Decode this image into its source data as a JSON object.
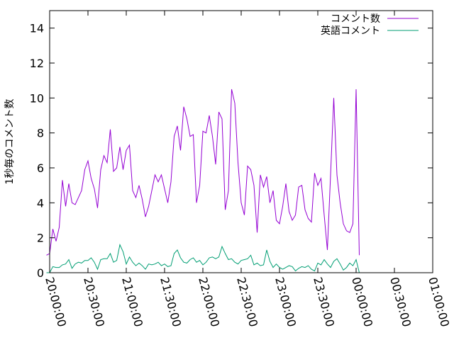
{
  "chart_data": {
    "type": "line",
    "title": "",
    "xlabel": "",
    "ylabel": "1秒毎のコメント数",
    "ylim": [
      0,
      15
    ],
    "yticks": [
      0,
      2,
      4,
      6,
      8,
      10,
      12,
      14
    ],
    "xlim": [
      "20:00:00",
      "25:00:00"
    ],
    "xtick_labels": [
      "20:00:00",
      "20:30:00",
      "21:00:00",
      "21:30:00",
      "22:00:00",
      "22:30:00",
      "23:00:00",
      "23:30:00",
      "00:00:00",
      "00:30:00",
      "01:00:00"
    ],
    "xtick_positions": [
      "20:00:00",
      "20:30:00",
      "21:00:00",
      "21:30:00",
      "22:00:00",
      "22:30:00",
      "23:00:00",
      "23:30:00",
      "24:00:00",
      "24:30:00",
      "25:00:00"
    ],
    "legend_position": "top-right",
    "grid": false,
    "series": [
      {
        "name": "コメント数",
        "color": "#9400d3",
        "points": [
          [
            "19:57:30",
            1.0
          ],
          [
            "20:00:00",
            1.1
          ],
          [
            "20:02:30",
            2.5
          ],
          [
            "20:05:00",
            1.8
          ],
          [
            "20:07:30",
            2.6
          ],
          [
            "20:10:00",
            5.3
          ],
          [
            "20:12:30",
            3.8
          ],
          [
            "20:15:00",
            5.1
          ],
          [
            "20:17:30",
            4.0
          ],
          [
            "20:20:00",
            3.9
          ],
          [
            "20:22:30",
            4.3
          ],
          [
            "20:25:00",
            4.7
          ],
          [
            "20:27:30",
            5.9
          ],
          [
            "20:30:00",
            6.4
          ],
          [
            "20:32:30",
            5.4
          ],
          [
            "20:35:00",
            4.8
          ],
          [
            "20:37:30",
            3.7
          ],
          [
            "20:40:00",
            5.9
          ],
          [
            "20:42:30",
            6.7
          ],
          [
            "20:45:00",
            6.3
          ],
          [
            "20:47:30",
            8.2
          ],
          [
            "20:50:00",
            5.8
          ],
          [
            "20:52:30",
            6.0
          ],
          [
            "20:55:00",
            7.2
          ],
          [
            "20:57:30",
            5.9
          ],
          [
            "21:00:00",
            7.0
          ],
          [
            "21:02:30",
            7.3
          ],
          [
            "21:05:00",
            4.7
          ],
          [
            "21:07:30",
            4.3
          ],
          [
            "21:10:00",
            5.0
          ],
          [
            "21:12:30",
            4.2
          ],
          [
            "21:15:00",
            3.2
          ],
          [
            "21:17:30",
            3.8
          ],
          [
            "21:20:00",
            4.7
          ],
          [
            "21:22:30",
            5.6
          ],
          [
            "21:25:00",
            5.2
          ],
          [
            "21:27:30",
            5.6
          ],
          [
            "21:30:00",
            4.8
          ],
          [
            "21:32:30",
            4.0
          ],
          [
            "21:35:00",
            5.2
          ],
          [
            "21:37:30",
            7.8
          ],
          [
            "21:40:00",
            8.4
          ],
          [
            "21:42:30",
            7.0
          ],
          [
            "21:45:00",
            9.5
          ],
          [
            "21:47:30",
            8.8
          ],
          [
            "21:50:00",
            7.8
          ],
          [
            "21:52:30",
            7.9
          ],
          [
            "21:55:00",
            4.0
          ],
          [
            "21:57:30",
            5.0
          ],
          [
            "22:00:00",
            8.1
          ],
          [
            "22:02:30",
            8.0
          ],
          [
            "22:05:00",
            9.0
          ],
          [
            "22:07:30",
            7.8
          ],
          [
            "22:10:00",
            6.2
          ],
          [
            "22:12:30",
            9.2
          ],
          [
            "22:15:00",
            8.8
          ],
          [
            "22:17:30",
            3.6
          ],
          [
            "22:20:00",
            4.7
          ],
          [
            "22:22:30",
            10.5
          ],
          [
            "22:25:00",
            9.7
          ],
          [
            "22:27:30",
            6.3
          ],
          [
            "22:30:00",
            4.0
          ],
          [
            "22:32:30",
            3.3
          ],
          [
            "22:35:00",
            6.1
          ],
          [
            "22:37:30",
            5.9
          ],
          [
            "22:40:00",
            5.0
          ],
          [
            "22:42:30",
            2.3
          ],
          [
            "22:45:00",
            5.6
          ],
          [
            "22:47:30",
            4.9
          ],
          [
            "22:50:00",
            5.5
          ],
          [
            "22:52:30",
            4.0
          ],
          [
            "22:55:00",
            4.7
          ],
          [
            "22:57:30",
            3.0
          ],
          [
            "23:00:00",
            2.8
          ],
          [
            "23:02:30",
            3.8
          ],
          [
            "23:05:00",
            5.1
          ],
          [
            "23:07:30",
            3.5
          ],
          [
            "23:10:00",
            3.0
          ],
          [
            "23:12:30",
            3.3
          ],
          [
            "23:15:00",
            4.9
          ],
          [
            "23:17:30",
            5.0
          ],
          [
            "23:20:00",
            3.6
          ],
          [
            "23:22:30",
            3.1
          ],
          [
            "23:25:00",
            2.9
          ],
          [
            "23:27:30",
            5.7
          ],
          [
            "23:30:00",
            5.0
          ],
          [
            "23:32:30",
            5.4
          ],
          [
            "23:35:00",
            3.3
          ],
          [
            "23:37:30",
            1.3
          ],
          [
            "23:40:00",
            5.6
          ],
          [
            "23:42:30",
            10.0
          ],
          [
            "23:45:00",
            5.6
          ],
          [
            "23:47:30",
            4.0
          ],
          [
            "23:50:00",
            2.8
          ],
          [
            "23:52:30",
            2.4
          ],
          [
            "23:55:00",
            2.3
          ],
          [
            "23:57:30",
            2.8
          ],
          [
            "24:00:00",
            10.5
          ],
          [
            "24:02:30",
            1.0
          ]
        ]
      },
      {
        "name": "英語コメント",
        "color": "#009e73",
        "points": [
          [
            "19:57:30",
            0.0
          ],
          [
            "20:00:00",
            0.0
          ],
          [
            "20:02:30",
            0.35
          ],
          [
            "20:05:00",
            0.3
          ],
          [
            "20:07:30",
            0.3
          ],
          [
            "20:10:00",
            0.45
          ],
          [
            "20:12:30",
            0.5
          ],
          [
            "20:15:00",
            0.75
          ],
          [
            "20:17:30",
            0.25
          ],
          [
            "20:20:00",
            0.5
          ],
          [
            "20:22:30",
            0.6
          ],
          [
            "20:25:00",
            0.55
          ],
          [
            "20:27:30",
            0.7
          ],
          [
            "20:30:00",
            0.7
          ],
          [
            "20:32:30",
            0.85
          ],
          [
            "20:35:00",
            0.6
          ],
          [
            "20:37:30",
            0.2
          ],
          [
            "20:40:00",
            0.75
          ],
          [
            "20:42:30",
            0.8
          ],
          [
            "20:45:00",
            0.8
          ],
          [
            "20:47:30",
            1.1
          ],
          [
            "20:50:00",
            0.6
          ],
          [
            "20:52:30",
            0.7
          ],
          [
            "20:55:00",
            1.6
          ],
          [
            "20:57:30",
            1.2
          ],
          [
            "21:00:00",
            0.5
          ],
          [
            "21:02:30",
            0.9
          ],
          [
            "21:05:00",
            0.6
          ],
          [
            "21:07:30",
            0.4
          ],
          [
            "21:10:00",
            0.55
          ],
          [
            "21:12:30",
            0.4
          ],
          [
            "21:15:00",
            0.2
          ],
          [
            "21:17:30",
            0.5
          ],
          [
            "21:20:00",
            0.45
          ],
          [
            "21:22:30",
            0.5
          ],
          [
            "21:25:00",
            0.6
          ],
          [
            "21:27:30",
            0.4
          ],
          [
            "21:30:00",
            0.5
          ],
          [
            "21:32:30",
            0.35
          ],
          [
            "21:35:00",
            0.4
          ],
          [
            "21:37:30",
            1.1
          ],
          [
            "21:40:00",
            1.3
          ],
          [
            "21:42:30",
            0.85
          ],
          [
            "21:45:00",
            0.6
          ],
          [
            "21:47:30",
            0.55
          ],
          [
            "21:50:00",
            0.75
          ],
          [
            "21:52:30",
            0.85
          ],
          [
            "21:55:00",
            0.6
          ],
          [
            "21:57:30",
            0.7
          ],
          [
            "22:00:00",
            0.45
          ],
          [
            "22:02:30",
            0.6
          ],
          [
            "22:05:00",
            0.85
          ],
          [
            "22:07:30",
            0.9
          ],
          [
            "22:10:00",
            0.8
          ],
          [
            "22:12:30",
            0.9
          ],
          [
            "22:15:00",
            1.5
          ],
          [
            "22:17:30",
            1.1
          ],
          [
            "22:20:00",
            0.75
          ],
          [
            "22:22:30",
            0.8
          ],
          [
            "22:25:00",
            0.6
          ],
          [
            "22:27:30",
            0.5
          ],
          [
            "22:30:00",
            0.7
          ],
          [
            "22:32:30",
            0.75
          ],
          [
            "22:35:00",
            0.8
          ],
          [
            "22:37:30",
            1.0
          ],
          [
            "22:40:00",
            0.45
          ],
          [
            "22:42:30",
            0.55
          ],
          [
            "22:45:00",
            0.4
          ],
          [
            "22:47:30",
            0.45
          ],
          [
            "22:50:00",
            1.3
          ],
          [
            "22:52:30",
            0.65
          ],
          [
            "22:55:00",
            0.3
          ],
          [
            "22:57:30",
            0.5
          ],
          [
            "23:00:00",
            0.3
          ],
          [
            "23:02:30",
            0.2
          ],
          [
            "23:05:00",
            0.3
          ],
          [
            "23:07:30",
            0.4
          ],
          [
            "23:10:00",
            0.35
          ],
          [
            "23:12:30",
            0.1
          ],
          [
            "23:15:00",
            0.25
          ],
          [
            "23:17:30",
            0.35
          ],
          [
            "23:20:00",
            0.3
          ],
          [
            "23:22:30",
            0.4
          ],
          [
            "23:25:00",
            0.2
          ],
          [
            "23:27:30",
            0.1
          ],
          [
            "23:30:00",
            0.55
          ],
          [
            "23:32:30",
            0.45
          ],
          [
            "23:35:00",
            0.75
          ],
          [
            "23:37:30",
            0.5
          ],
          [
            "23:40:00",
            0.3
          ],
          [
            "23:42:30",
            0.65
          ],
          [
            "23:45:00",
            0.8
          ],
          [
            "23:47:30",
            0.5
          ],
          [
            "23:50:00",
            0.15
          ],
          [
            "23:52:30",
            0.3
          ],
          [
            "23:55:00",
            0.55
          ],
          [
            "23:57:30",
            0.4
          ],
          [
            "24:00:00",
            0.75
          ],
          [
            "24:02:30",
            0.0
          ]
        ]
      }
    ]
  }
}
